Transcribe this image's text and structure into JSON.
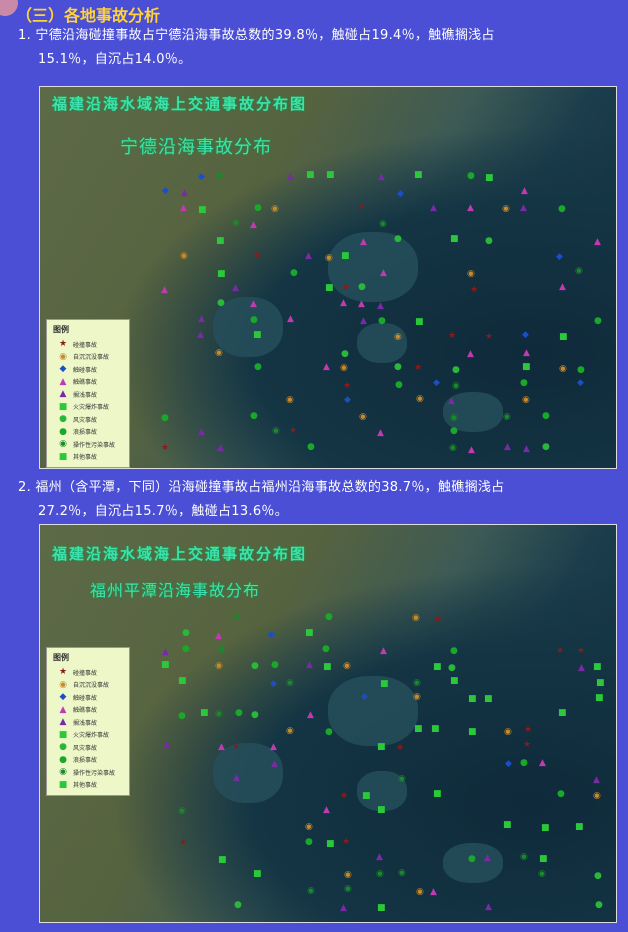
{
  "section_title": "（三）各地事故分析",
  "items": [
    {
      "line1": "1. 宁德沿海碰撞事故占宁德沿海事故总数的39.8％，触碰占19.4％，触礁搁浅占",
      "line2": "15.1％，自沉占14.0％。",
      "map": {
        "title": "福建沿海水域海上交通事故分布图",
        "subtitle": "宁德沿海事故分布"
      }
    },
    {
      "line1": "2. 福州（含平潭，下同）沿海碰撞事故占福州沿海事故总数的38.7％，触礁搁浅占",
      "line2": "27.2％，自沉占15.7％，触碰占13.6％。",
      "map": {
        "title": "福建沿海水域海上交通事故分布图",
        "subtitle": "福州平潭沿海事故分布"
      }
    }
  ],
  "legend": {
    "title": "图例",
    "entries": [
      {
        "label": "碰撞事故",
        "icon": "star",
        "color": "#8b1a1a"
      },
      {
        "label": "自沉沉没事故",
        "icon": "ring",
        "color": "#c88a2a"
      },
      {
        "label": "触碰事故",
        "icon": "diamond",
        "color": "#1a4fc8"
      },
      {
        "label": "触礁事故",
        "icon": "triangle",
        "color": "#c03ab0"
      },
      {
        "label": "搁浅事故",
        "icon": "triangle",
        "color": "#7a2aa8"
      },
      {
        "label": "火灾爆炸事故",
        "icon": "square",
        "color": "#2ac83a"
      },
      {
        "label": "风灾事故",
        "icon": "circle",
        "color": "#2ab83a"
      },
      {
        "label": "浪损事故",
        "icon": "circle",
        "color": "#1aa82a"
      },
      {
        "label": "操作性污染事故",
        "icon": "ring",
        "color": "#1a8a2a"
      },
      {
        "label": "其他事故",
        "icon": "square",
        "color": "#2ac83a"
      }
    ]
  }
}
